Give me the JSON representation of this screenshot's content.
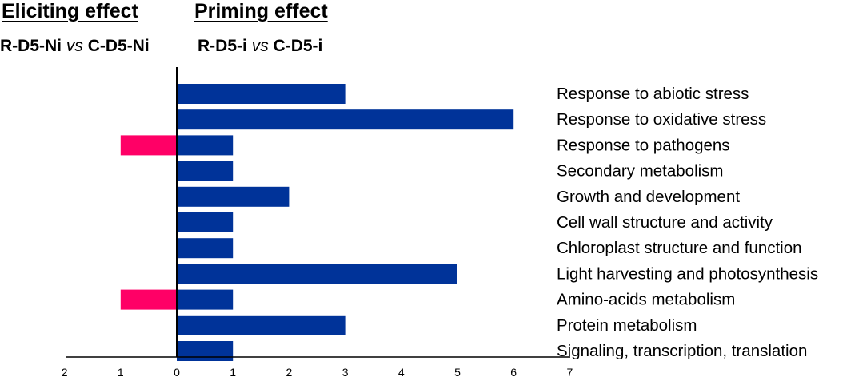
{
  "headers": {
    "eliciting_title": "Eliciting effect",
    "priming_title": "Priming effect",
    "eliciting_sub": {
      "left": "R-D5-Ni",
      "vs": "vs",
      "right": "C-D5-Ni"
    },
    "priming_sub": {
      "left": "R-D5-i",
      "vs": "vs",
      "right": "C-D5-i"
    }
  },
  "chart_data": {
    "type": "bar",
    "orientation": "horizontal",
    "title": "",
    "xlabel": "",
    "ylabel": "",
    "xlim": [
      -2,
      7
    ],
    "x_ticks": [
      -2,
      -1,
      0,
      1,
      2,
      3,
      4,
      5,
      6,
      7
    ],
    "x_tick_labels": [
      "2",
      "1",
      "0",
      "1",
      "2",
      "3",
      "4",
      "5",
      "6",
      "7"
    ],
    "categories": [
      "Response to abiotic stress",
      "Response to oxidative stress",
      "Response to pathogens",
      "Secondary metabolism",
      "Growth and development",
      "Cell wall structure and activity",
      "Chloroplast structure and function",
      "Light harvesting and photosynthesis",
      "Amino-acids metabolism",
      "Protein metabolism",
      "Signaling, transcription, translation"
    ],
    "series": [
      {
        "name": "Eliciting effect (R-D5-Ni vs C-D5-Ni)",
        "color": "#ff0066",
        "values": [
          0,
          0,
          1,
          0,
          0,
          0,
          0,
          0,
          1,
          0,
          0
        ]
      },
      {
        "name": "Priming effect (R-D5-i vs C-D5-i)",
        "color": "#003399",
        "values": [
          3,
          6,
          1,
          1,
          2,
          1,
          1,
          5,
          1,
          3,
          1
        ]
      }
    ]
  }
}
